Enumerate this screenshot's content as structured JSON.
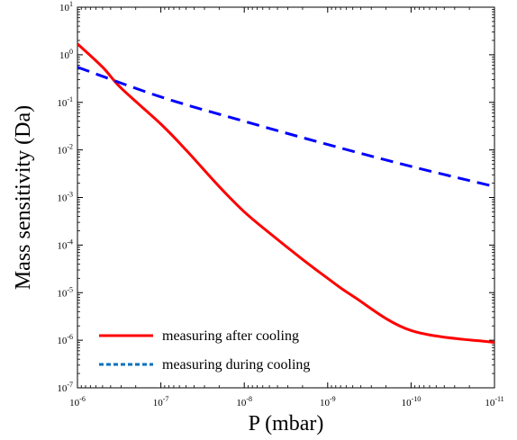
{
  "chart_data": {
    "type": "line",
    "title": "",
    "xlabel": "P (mbar)",
    "ylabel": "Mass sensitivity (Da)",
    "x_scale": "log",
    "y_scale": "log",
    "x_reversed": true,
    "xlim": [
      1e-06,
      1e-11
    ],
    "ylim": [
      1e-07,
      10
    ],
    "x_ticks": [
      {
        "base": "10",
        "exp": "-6"
      },
      {
        "base": "10",
        "exp": "-7"
      },
      {
        "base": "10",
        "exp": "-8"
      },
      {
        "base": "10",
        "exp": "-9"
      },
      {
        "base": "10",
        "exp": "-10"
      },
      {
        "base": "10",
        "exp": "-11"
      }
    ],
    "y_ticks": [
      {
        "base": "10",
        "exp": "1"
      },
      {
        "base": "10",
        "exp": "0"
      },
      {
        "base": "10",
        "exp": "-1"
      },
      {
        "base": "10",
        "exp": "-2"
      },
      {
        "base": "10",
        "exp": "-3"
      },
      {
        "base": "10",
        "exp": "-4"
      },
      {
        "base": "10",
        "exp": "-5"
      },
      {
        "base": "10",
        "exp": "-6"
      },
      {
        "base": "10",
        "exp": "-7"
      }
    ],
    "grid": false,
    "legend_position": "bottom-left",
    "series": [
      {
        "name": "measuring after cooling",
        "color": "#ff0000",
        "style": "solid",
        "x": [
          1e-06,
          5e-07,
          3e-07,
          1e-07,
          5e-08,
          2e-08,
          1e-08,
          5e-09,
          2e-09,
          1e-09,
          5e-10,
          1e-10,
          3e-11,
          1e-11
        ],
        "y": [
          1.7,
          0.55,
          0.2,
          0.035,
          0.01,
          0.0017,
          0.0005,
          0.00018,
          5e-05,
          2e-05,
          8.5e-06,
          1.6e-06,
          4e-07,
          9e-07
        ]
      },
      {
        "name": "measuring during cooling",
        "color": "#0000ff",
        "style": "dashed",
        "x": [
          1e-06,
          1e-07,
          1e-08,
          1e-09,
          1e-10,
          1e-11
        ],
        "y": [
          0.55,
          0.13,
          0.04,
          0.013,
          0.0045,
          0.0017
        ]
      }
    ],
    "legend_colors": {
      "measuring after cooling": "#ff0000",
      "measuring during cooling": "#0070c0"
    }
  }
}
